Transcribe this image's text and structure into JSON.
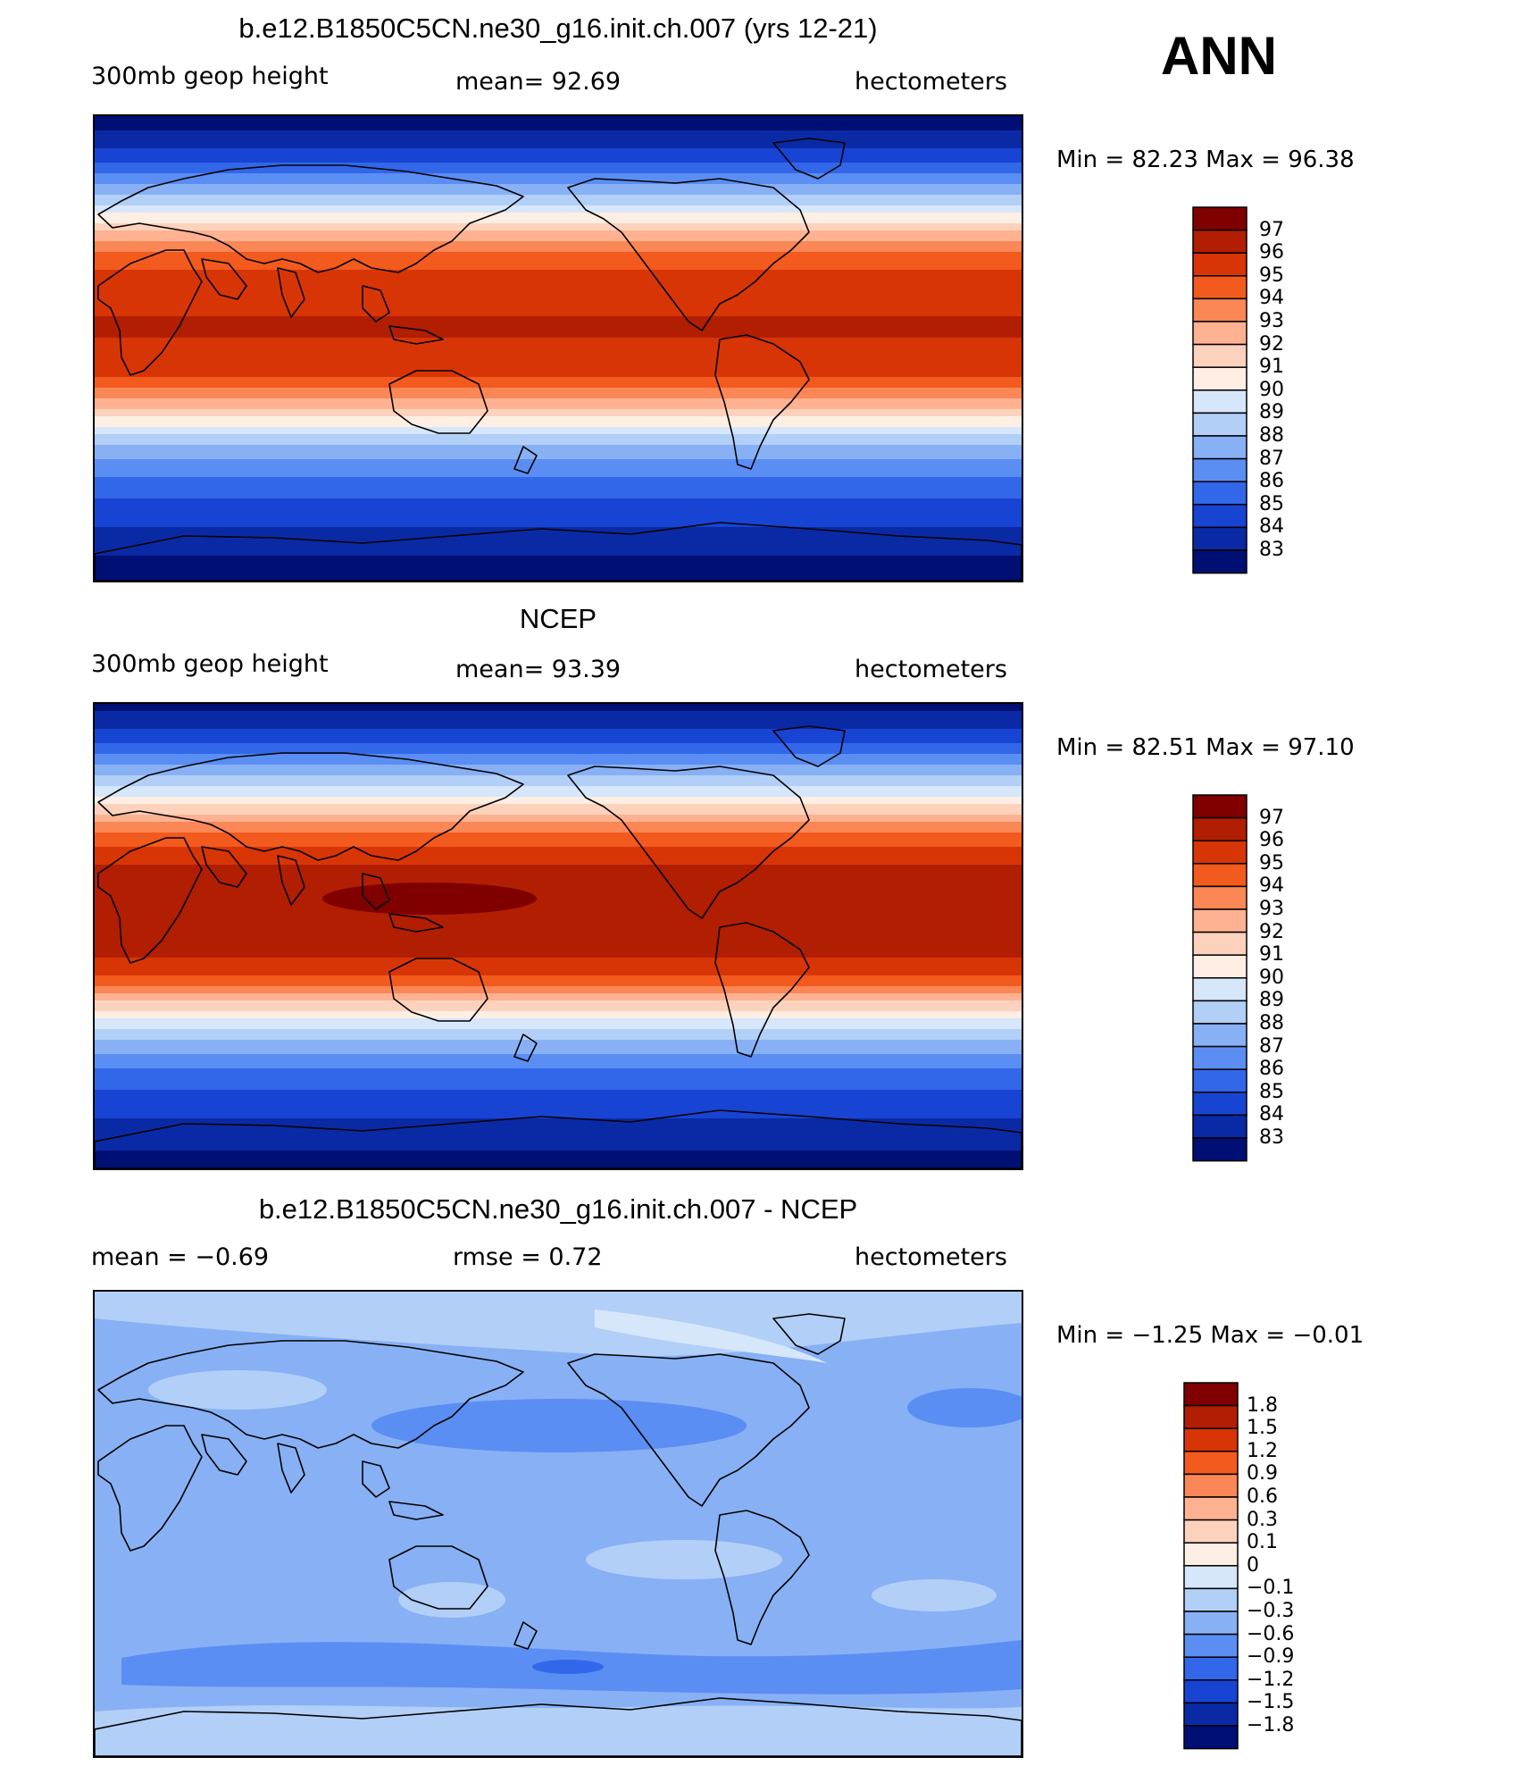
{
  "season": "ANN",
  "panels": [
    {
      "id": "model",
      "title": "b.e12.B1850C5CN.ne30_g16.init.ch.007 (yrs 12-21)",
      "left_label": "300mb geop height",
      "center_label": "mean=   92.69",
      "right_label": "hectometers",
      "minmax": "Min =   82.23 Max =   96.38",
      "colorbar_labels": [
        "97",
        "96",
        "95",
        "94",
        "93",
        "92",
        "91",
        "90",
        "89",
        "88",
        "87",
        "86",
        "85",
        "84",
        "83"
      ],
      "colorbar_colors": [
        "#800000",
        "#b11e02",
        "#d83506",
        "#f25a1e",
        "#fb8656",
        "#feb291",
        "#fdd2bc",
        "#feeee3",
        "#d6e6fb",
        "#b2cff7",
        "#88b0f4",
        "#5b8ef3",
        "#3267ea",
        "#1844d4",
        "#0a2aa5",
        "#000f74"
      ],
      "profile": [
        [
          82.3,
          0.0
        ],
        [
          83.6,
          0.08
        ],
        [
          85.2,
          0.16
        ],
        [
          87.2,
          0.24
        ],
        [
          89.6,
          0.32
        ],
        [
          92.3,
          0.4
        ],
        [
          94.4,
          0.48
        ],
        [
          95.4,
          0.56
        ],
        [
          95.9,
          0.64
        ],
        [
          96.1,
          0.72
        ],
        [
          95.9,
          0.8
        ],
        [
          95.2,
          0.88
        ],
        [
          93.4,
          0.96
        ],
        [
          90.6,
          1.04
        ],
        [
          88.1,
          1.12
        ],
        [
          86.5,
          1.2
        ],
        [
          85.4,
          1.28
        ],
        [
          84.5,
          1.36
        ],
        [
          83.6,
          1.44
        ],
        [
          82.9,
          1.52
        ],
        [
          82.3,
          1.6
        ]
      ],
      "warm_pool": false
    },
    {
      "id": "obs",
      "title": "NCEP",
      "left_label": "300mb geop height",
      "center_label": "mean=   93.39",
      "right_label": "hectometers",
      "minmax": "Min =   82.51 Max =   97.10",
      "colorbar_labels": [
        "97",
        "96",
        "95",
        "94",
        "93",
        "92",
        "91",
        "90",
        "89",
        "88",
        "87",
        "86",
        "85",
        "84",
        "83"
      ],
      "colorbar_colors": [
        "#800000",
        "#b11e02",
        "#d83506",
        "#f25a1e",
        "#fb8656",
        "#feb291",
        "#fdd2bc",
        "#feeee3",
        "#d6e6fb",
        "#b2cff7",
        "#88b0f4",
        "#5b8ef3",
        "#3267ea",
        "#1844d4",
        "#0a2aa5",
        "#000f74"
      ],
      "profile": [
        [
          82.6,
          0.0
        ],
        [
          84.0,
          0.08
        ],
        [
          85.8,
          0.16
        ],
        [
          87.9,
          0.24
        ],
        [
          90.3,
          0.32
        ],
        [
          93.0,
          0.4
        ],
        [
          95.0,
          0.48
        ],
        [
          96.1,
          0.56
        ],
        [
          96.6,
          0.64
        ],
        [
          96.7,
          0.72
        ],
        [
          96.5,
          0.8
        ],
        [
          95.9,
          0.88
        ],
        [
          94.3,
          0.96
        ],
        [
          91.3,
          1.04
        ],
        [
          88.6,
          1.12
        ],
        [
          86.9,
          1.2
        ],
        [
          85.6,
          1.28
        ],
        [
          84.6,
          1.36
        ],
        [
          83.8,
          1.44
        ],
        [
          83.1,
          1.52
        ],
        [
          82.6,
          1.6
        ]
      ],
      "warm_pool": true
    },
    {
      "id": "diff",
      "title": "b.e12.B1850C5CN.ne30_g16.init.ch.007 - NCEP",
      "left_label": "mean =   −0.69",
      "center_label": "rmse =    0.72",
      "right_label": "hectometers",
      "minmax": "Min =   −1.25 Max =   −0.01",
      "colorbar_labels": [
        "1.8",
        "1.5",
        "1.2",
        "0.9",
        "0.6",
        "0.3",
        "0.1",
        "0",
        "−0.1",
        "−0.3",
        "−0.6",
        "−0.9",
        "−1.2",
        "−1.5",
        "−1.8"
      ],
      "colorbar_colors": [
        "#800000",
        "#b11e02",
        "#d83506",
        "#f25a1e",
        "#fb8656",
        "#feb291",
        "#fdd2bc",
        "#feeee3",
        "#d6e6fb",
        "#b2cff7",
        "#88b0f4",
        "#5b8ef3",
        "#3267ea",
        "#1844d4",
        "#0a2aa5",
        "#000f74"
      ]
    }
  ]
}
